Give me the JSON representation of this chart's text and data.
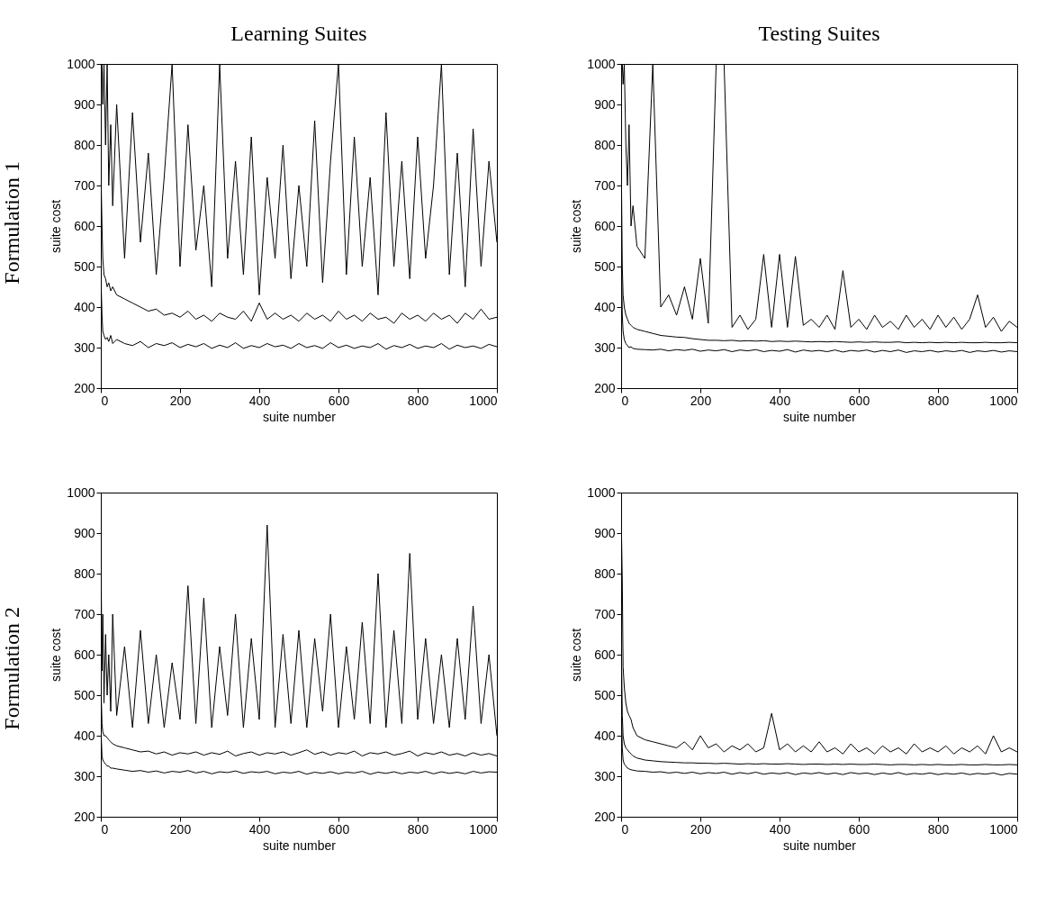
{
  "chart_data": [
    {
      "type": "line",
      "title": "Learning Suites",
      "annotations": [
        "Formulation 1"
      ],
      "xlabel": "suite number",
      "ylabel": "suite cost",
      "xlim": [
        0,
        1000
      ],
      "ylim": [
        200,
        1000
      ],
      "xticks": [
        0,
        200,
        400,
        600,
        800,
        1000
      ],
      "yticks": [
        200,
        300,
        400,
        500,
        600,
        700,
        800,
        900,
        1000
      ],
      "x": [
        1,
        3,
        5,
        8,
        12,
        16,
        20,
        25,
        30,
        40,
        60,
        80,
        100,
        120,
        140,
        160,
        180,
        200,
        220,
        240,
        260,
        280,
        300,
        320,
        340,
        360,
        380,
        400,
        420,
        440,
        460,
        480,
        500,
        520,
        540,
        560,
        580,
        600,
        620,
        640,
        660,
        680,
        700,
        720,
        740,
        760,
        780,
        800,
        820,
        840,
        860,
        880,
        900,
        920,
        940,
        960,
        980,
        1000
      ],
      "series": [
        {
          "color": "#000000",
          "values": [
            1000,
            1000,
            900,
            1000,
            800,
            1000,
            700,
            850,
            650,
            900,
            520,
            880,
            560,
            780,
            480,
            720,
            1000,
            500,
            850,
            540,
            700,
            450,
            1000,
            520,
            760,
            480,
            820,
            430,
            720,
            520,
            800,
            470,
            700,
            500,
            860,
            460,
            760,
            1000,
            480,
            820,
            500,
            720,
            430,
            880,
            500,
            760,
            470,
            820,
            520,
            700,
            1000,
            480,
            780,
            450,
            840,
            500,
            760,
            560
          ]
        },
        {
          "color": "#000000",
          "values": [
            700,
            600,
            520,
            480,
            470,
            450,
            460,
            440,
            450,
            430,
            420,
            410,
            400,
            390,
            395,
            380,
            385,
            375,
            390,
            370,
            380,
            365,
            385,
            375,
            370,
            390,
            365,
            410,
            370,
            385,
            370,
            380,
            365,
            385,
            370,
            380,
            365,
            390,
            370,
            380,
            365,
            385,
            370,
            375,
            360,
            385,
            370,
            380,
            365,
            385,
            370,
            380,
            360,
            385,
            370,
            395,
            370,
            375
          ]
        },
        {
          "color": "#000000",
          "values": [
            450,
            380,
            340,
            330,
            320,
            325,
            315,
            330,
            310,
            320,
            310,
            305,
            315,
            300,
            310,
            305,
            312,
            300,
            308,
            302,
            310,
            298,
            306,
            300,
            312,
            298,
            305,
            300,
            310,
            302,
            306,
            298,
            310,
            300,
            305,
            298,
            312,
            300,
            306,
            298,
            304,
            300,
            310,
            296,
            305,
            300,
            308,
            298,
            304,
            300,
            310,
            296,
            306,
            300,
            304,
            298,
            308,
            302
          ]
        }
      ]
    },
    {
      "type": "line",
      "title": "Testing Suites",
      "xlabel": "suite number",
      "ylabel": "suite cost",
      "xlim": [
        0,
        1000
      ],
      "ylim": [
        200,
        1000
      ],
      "xticks": [
        0,
        200,
        400,
        600,
        800,
        1000
      ],
      "yticks": [
        200,
        300,
        400,
        500,
        600,
        700,
        800,
        900,
        1000
      ],
      "x": [
        1,
        3,
        5,
        8,
        12,
        16,
        20,
        25,
        30,
        40,
        60,
        80,
        100,
        120,
        140,
        160,
        180,
        200,
        220,
        240,
        260,
        280,
        300,
        320,
        340,
        360,
        380,
        400,
        420,
        440,
        460,
        480,
        500,
        520,
        540,
        560,
        580,
        600,
        620,
        640,
        660,
        680,
        700,
        720,
        740,
        760,
        780,
        800,
        820,
        840,
        860,
        880,
        900,
        920,
        940,
        960,
        980,
        1000
      ],
      "series": [
        {
          "color": "#000000",
          "values": [
            1000,
            1000,
            950,
            1000,
            800,
            700,
            850,
            600,
            650,
            550,
            520,
            1000,
            400,
            430,
            380,
            450,
            370,
            520,
            360,
            1000,
            1000,
            350,
            380,
            345,
            370,
            530,
            350,
            530,
            350,
            525,
            355,
            370,
            350,
            380,
            345,
            490,
            350,
            370,
            345,
            380,
            350,
            365,
            345,
            380,
            350,
            370,
            345,
            380,
            350,
            375,
            345,
            370,
            430,
            350,
            375,
            340,
            365,
            350
          ]
        },
        {
          "color": "#000000",
          "values": [
            700,
            500,
            430,
            400,
            380,
            370,
            360,
            355,
            350,
            345,
            340,
            335,
            330,
            328,
            326,
            325,
            322,
            320,
            318,
            318,
            317,
            318,
            316,
            317,
            316,
            317,
            315,
            316,
            315,
            316,
            315,
            314,
            315,
            314,
            315,
            314,
            313,
            314,
            313,
            314,
            313,
            313,
            314,
            312,
            313,
            312,
            313,
            312,
            313,
            312,
            313,
            312,
            312,
            313,
            312,
            312,
            313,
            312
          ]
        },
        {
          "color": "#000000",
          "values": [
            500,
            380,
            340,
            320,
            310,
            305,
            300,
            302,
            298,
            296,
            295,
            294,
            296,
            292,
            295,
            293,
            296,
            291,
            294,
            292,
            295,
            290,
            294,
            292,
            295,
            290,
            293,
            291,
            295,
            289,
            294,
            291,
            293,
            290,
            294,
            289,
            293,
            291,
            294,
            289,
            293,
            290,
            294,
            288,
            292,
            290,
            293,
            289,
            292,
            290,
            293,
            288,
            292,
            290,
            293,
            289,
            292,
            290
          ]
        }
      ]
    },
    {
      "type": "line",
      "annotations": [
        "Formulation 2"
      ],
      "xlabel": "suite number",
      "ylabel": "suite cost",
      "xlim": [
        0,
        1000
      ],
      "ylim": [
        200,
        1000
      ],
      "xticks": [
        0,
        200,
        400,
        600,
        800,
        1000
      ],
      "yticks": [
        200,
        300,
        400,
        500,
        600,
        700,
        800,
        900,
        1000
      ],
      "x": [
        1,
        3,
        5,
        8,
        12,
        16,
        20,
        25,
        30,
        40,
        60,
        80,
        100,
        120,
        140,
        160,
        180,
        200,
        220,
        240,
        260,
        280,
        300,
        320,
        340,
        360,
        380,
        400,
        420,
        440,
        460,
        480,
        500,
        520,
        540,
        560,
        580,
        600,
        620,
        640,
        660,
        680,
        700,
        720,
        740,
        760,
        780,
        800,
        820,
        840,
        860,
        880,
        900,
        920,
        940,
        960,
        980,
        1000
      ],
      "series": [
        {
          "color": "#000000",
          "values": [
            780,
            560,
            700,
            480,
            650,
            500,
            600,
            460,
            700,
            450,
            620,
            420,
            660,
            430,
            600,
            420,
            580,
            440,
            770,
            430,
            740,
            420,
            620,
            450,
            700,
            420,
            640,
            440,
            920,
            420,
            650,
            430,
            660,
            420,
            640,
            460,
            700,
            420,
            620,
            440,
            680,
            430,
            800,
            420,
            660,
            430,
            850,
            440,
            640,
            430,
            600,
            420,
            640,
            440,
            720,
            430,
            600,
            400
          ]
        },
        {
          "color": "#000000",
          "values": [
            500,
            430,
            410,
            400,
            400,
            395,
            390,
            385,
            380,
            375,
            370,
            365,
            360,
            362,
            355,
            360,
            352,
            358,
            355,
            360,
            352,
            358,
            354,
            362,
            350,
            356,
            360,
            352,
            358,
            355,
            360,
            352,
            358,
            365,
            354,
            360,
            352,
            358,
            355,
            362,
            350,
            358,
            355,
            360,
            352,
            356,
            362,
            350,
            358,
            354,
            360,
            352,
            356,
            350,
            358,
            352,
            356,
            350
          ]
        },
        {
          "color": "#000000",
          "values": [
            400,
            350,
            340,
            335,
            330,
            325,
            325,
            320,
            320,
            318,
            315,
            312,
            314,
            310,
            313,
            308,
            312,
            310,
            314,
            308,
            312,
            306,
            311,
            309,
            313,
            307,
            311,
            309,
            312,
            306,
            310,
            308,
            312,
            305,
            310,
            307,
            311,
            306,
            310,
            308,
            312,
            305,
            310,
            307,
            311,
            306,
            310,
            308,
            312,
            306,
            311,
            307,
            310,
            306,
            312,
            308,
            311,
            310
          ]
        }
      ]
    },
    {
      "type": "line",
      "xlabel": "suite number",
      "ylabel": "suite cost",
      "xlim": [
        0,
        1000
      ],
      "ylim": [
        200,
        1000
      ],
      "xticks": [
        0,
        200,
        400,
        600,
        800,
        1000
      ],
      "yticks": [
        200,
        300,
        400,
        500,
        600,
        700,
        800,
        900,
        1000
      ],
      "x": [
        1,
        3,
        5,
        8,
        12,
        16,
        20,
        25,
        30,
        40,
        60,
        80,
        100,
        120,
        140,
        160,
        180,
        200,
        220,
        240,
        260,
        280,
        300,
        320,
        340,
        360,
        380,
        400,
        420,
        440,
        460,
        480,
        500,
        520,
        540,
        560,
        580,
        600,
        620,
        640,
        660,
        680,
        700,
        720,
        740,
        760,
        780,
        800,
        820,
        840,
        860,
        880,
        900,
        920,
        940,
        960,
        980,
        1000
      ],
      "series": [
        {
          "color": "#000000",
          "values": [
            900,
            780,
            570,
            520,
            480,
            460,
            450,
            440,
            420,
            400,
            390,
            385,
            380,
            375,
            370,
            385,
            365,
            400,
            370,
            380,
            360,
            375,
            365,
            380,
            360,
            370,
            455,
            365,
            380,
            360,
            375,
            360,
            385,
            360,
            370,
            355,
            380,
            360,
            370,
            355,
            375,
            360,
            370,
            355,
            380,
            360,
            370,
            360,
            375,
            355,
            370,
            360,
            375,
            355,
            400,
            360,
            370,
            360
          ]
        },
        {
          "color": "#000000",
          "values": [
            600,
            450,
            400,
            380,
            370,
            365,
            360,
            355,
            350,
            345,
            340,
            338,
            336,
            335,
            334,
            333,
            333,
            332,
            332,
            331,
            332,
            331,
            330,
            331,
            330,
            331,
            330,
            330,
            331,
            330,
            329,
            330,
            330,
            329,
            330,
            329,
            330,
            329,
            329,
            330,
            329,
            328,
            329,
            329,
            328,
            329,
            328,
            329,
            328,
            328,
            329,
            328,
            328,
            329,
            328,
            328,
            329,
            328
          ]
        },
        {
          "color": "#000000",
          "values": [
            450,
            370,
            340,
            330,
            325,
            320,
            318,
            316,
            315,
            313,
            312,
            310,
            311,
            308,
            310,
            307,
            310,
            306,
            309,
            307,
            310,
            305,
            309,
            306,
            310,
            305,
            308,
            306,
            309,
            304,
            308,
            306,
            309,
            305,
            308,
            304,
            309,
            306,
            308,
            304,
            308,
            305,
            309,
            304,
            307,
            305,
            308,
            304,
            307,
            305,
            308,
            304,
            307,
            305,
            308,
            303,
            307,
            305
          ]
        }
      ]
    }
  ]
}
